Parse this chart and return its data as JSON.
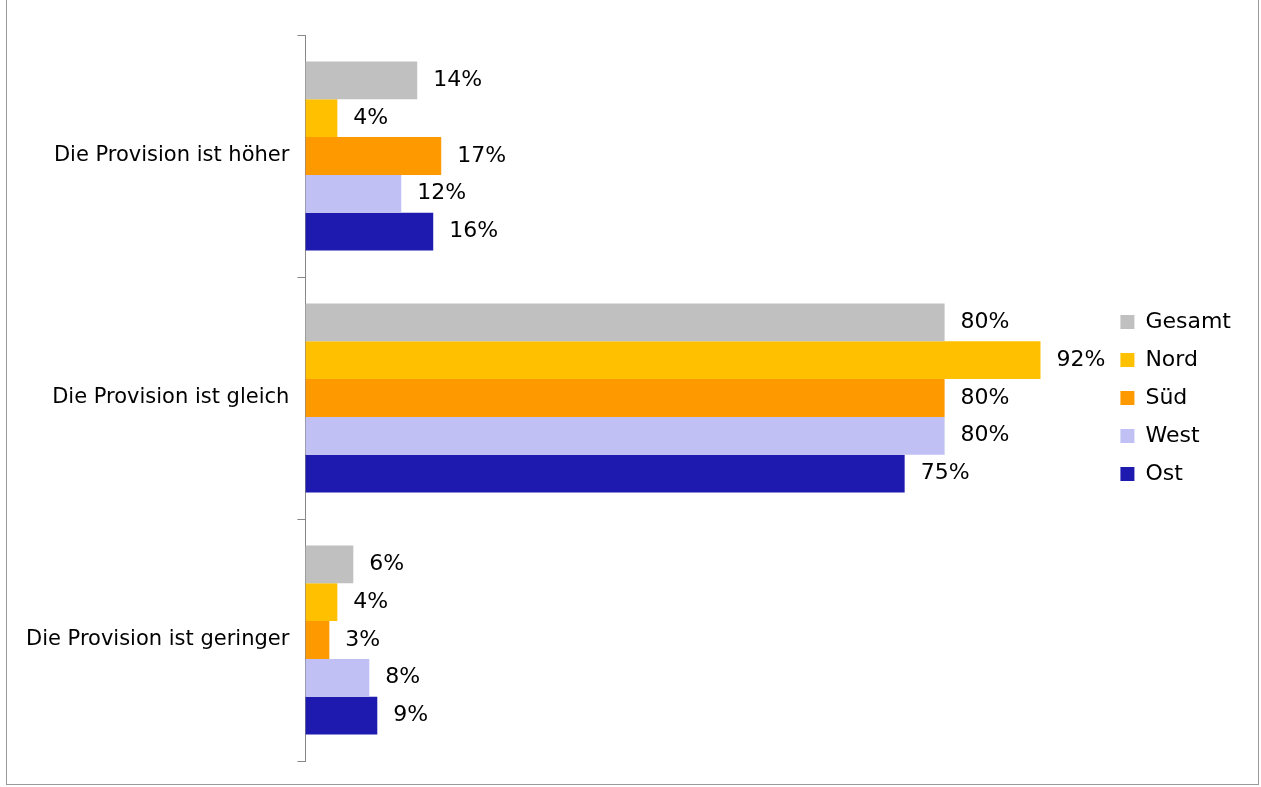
{
  "chart_data": {
    "type": "bar",
    "orientation": "horizontal",
    "categories": [
      "Die Provision ist höher",
      "Die Provision ist gleich",
      "Die Provision ist geringer"
    ],
    "legend": "right",
    "series": [
      {
        "name": "Gesamt",
        "color": "#c0c0c0",
        "values": [
          14,
          80,
          6
        ],
        "value_labels": [
          "14%",
          "80%",
          "6%"
        ]
      },
      {
        "name": "Nord",
        "color": "#ffc000",
        "values": [
          4,
          92,
          4
        ],
        "value_labels": [
          "4%",
          "92%",
          "4%"
        ]
      },
      {
        "name": "Süd",
        "color": "#ff9900",
        "values": [
          17,
          80,
          3
        ],
        "value_labels": [
          "17%",
          "80%",
          "3%"
        ]
      },
      {
        "name": "West",
        "color": "#c0c0f4",
        "values": [
          12,
          80,
          8
        ],
        "value_labels": [
          "12%",
          "80%",
          "8%"
        ]
      },
      {
        "name": "Ost",
        "color": "#1f1aaf",
        "values": [
          16,
          75,
          9
        ],
        "value_labels": [
          "16%",
          "75%",
          "9%"
        ]
      }
    ]
  }
}
